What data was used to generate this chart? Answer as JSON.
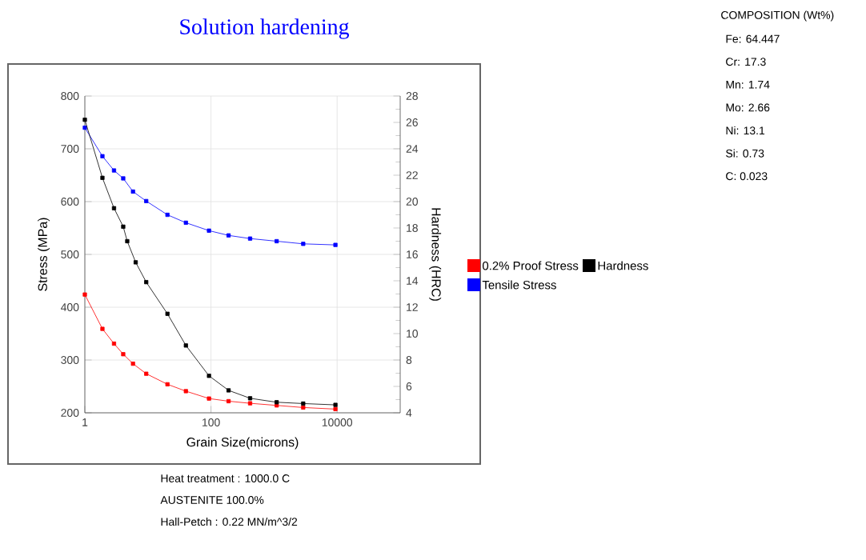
{
  "chart_data": {
    "type": "line",
    "title": "Solution hardening",
    "xlabel": "Grain Size(microns)",
    "ylabel": "Stress (MPa)",
    "y2label": "Hardness (HRC)",
    "x": [
      1,
      1.9,
      2.9,
      4.06,
      5.8,
      9.4,
      20.4,
      40,
      93,
      190,
      417,
      1100,
      2900,
      9400
    ],
    "series": [
      {
        "name": "0.2% Proof Stress",
        "color": "#ff0000",
        "values": [
          424,
          359,
          331,
          311,
          293,
          274,
          254,
          241,
          227,
          222,
          218,
          214,
          210,
          207
        ]
      },
      {
        "name": "Hardness",
        "color": "#000000",
        "axis": "y2",
        "x": [
          1,
          1.9,
          2.9,
          4.06,
          4.7,
          6.4,
          9.4,
          20.4,
          40,
          93,
          190,
          417,
          1100,
          2900,
          9400
        ],
        "values": [
          26.2,
          21.8,
          19.5,
          18.1,
          17.0,
          15.4,
          13.9,
          11.5,
          9.1,
          6.8,
          5.7,
          5.1,
          4.8,
          4.7,
          4.6
        ]
      },
      {
        "name": "Tensile Stress",
        "color": "#0000ff",
        "values": [
          740,
          686,
          659,
          644,
          619,
          601,
          575,
          560,
          545,
          536,
          530,
          525,
          520,
          518
        ]
      }
    ],
    "log": "x",
    "xlim": [
      1,
      100000
    ],
    "xticks": [
      1,
      100,
      10000
    ],
    "ylim": [
      200,
      800
    ],
    "yticks": [
      200,
      300,
      400,
      500,
      600,
      700,
      800
    ],
    "y2lim": [
      4,
      28
    ],
    "y2ticks": [
      4,
      6,
      8,
      10,
      12,
      14,
      16,
      18,
      20,
      22,
      24,
      26,
      28
    ],
    "grid": true,
    "legend": "right",
    "marker": "square",
    "line_style": "solid",
    "annotations": [
      "COMPOSITION (Wt%)",
      "Fe: 64.447",
      "Cr: 17.3",
      "Mn: 1.74",
      "Mo: 2.66",
      "Ni: 13.1",
      "Si: 0.73",
      "C: 0.023",
      "Heat treatment : 1000.0 C",
      "AUSTENITE 100.0%",
      "Hall-Petch : 0.22 MN/m^3/2"
    ]
  }
}
